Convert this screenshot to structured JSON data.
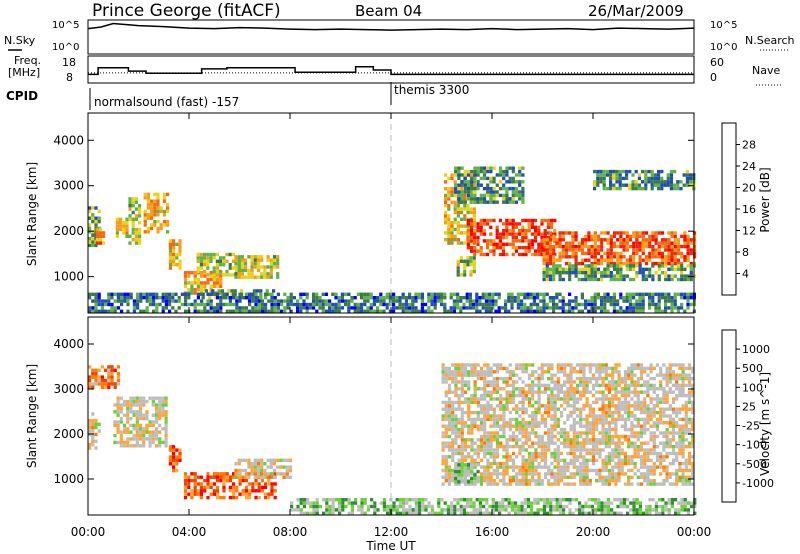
{
  "header": {
    "station": "Prince George (fitACF)",
    "beam": "Beam 04",
    "date": "26/Mar/2009"
  },
  "nsky_panel": {
    "left_label": "N.Sky",
    "right_label": "N.Search",
    "left_ticks": [
      "10^5",
      "10^0"
    ],
    "right_ticks": [
      "10^5",
      "10^0"
    ]
  },
  "freq_panel": {
    "left_label_1": "Freq.",
    "left_label_2": "[MHz]",
    "right_label": "Nave",
    "left_ticks": [
      "18",
      "8"
    ],
    "right_ticks": [
      "60",
      "0"
    ]
  },
  "cpid": {
    "label": "CPID",
    "modes": [
      "normalsound (fast) -157",
      "themis 3300"
    ]
  },
  "time_axis": {
    "label": "Time UT",
    "ticks": [
      "00:00",
      "04:00",
      "08:00",
      "12:00",
      "16:00",
      "20:00",
      "00:00"
    ]
  },
  "colors": {
    "power_scale": [
      "#0000ff",
      "#1f4fb4",
      "#3a7a46",
      "#5fb24a",
      "#e6d31b",
      "#f59e1c",
      "#f26b14",
      "#e82a0d",
      "#ff0000"
    ],
    "velocity_scale": [
      "#ff0000",
      "#ee4400",
      "#ff7a00",
      "#ffa43a",
      "#bdbdbd",
      "#bdbdbd",
      "#6ad13a",
      "#2f8f2f",
      "#1f58b8",
      "#1838c8"
    ]
  },
  "chart_data": [
    {
      "type": "heatmap",
      "title": "Power",
      "xlabel": "Time UT",
      "ylabel": "Slant Range [km]",
      "colorbar_label": "Power [dB]",
      "colorbar_ticks": [
        "28",
        "24",
        "20",
        "16",
        "12",
        "8",
        "4"
      ],
      "y_ticks": [
        "4000",
        "3000",
        "2000",
        "1000"
      ],
      "xlim": [
        0,
        24
      ],
      "ylim": [
        200,
        4600
      ],
      "patches": [
        {
          "t0": 0.0,
          "t1": 0.5,
          "r0": 1650,
          "r1": 2500,
          "level": 0.35
        },
        {
          "t0": 0.3,
          "t1": 0.6,
          "r0": 1700,
          "r1": 2000,
          "level": 0.65
        },
        {
          "t0": 1.1,
          "t1": 1.5,
          "r0": 1850,
          "r1": 2250,
          "level": 0.55
        },
        {
          "t0": 1.6,
          "t1": 2.1,
          "r0": 1700,
          "r1": 2700,
          "level": 0.45
        },
        {
          "t0": 2.2,
          "t1": 3.1,
          "r0": 1950,
          "r1": 2800,
          "level": 0.6
        },
        {
          "t0": 3.2,
          "t1": 3.7,
          "r0": 1150,
          "r1": 1750,
          "level": 0.55
        },
        {
          "t0": 3.8,
          "t1": 5.3,
          "r0": 600,
          "r1": 1050,
          "level": 0.6
        },
        {
          "t0": 4.3,
          "t1": 6.0,
          "r0": 1000,
          "r1": 1500,
          "level": 0.45
        },
        {
          "t0": 4.5,
          "t1": 7.3,
          "r0": 500,
          "r1": 700,
          "level": 0.35
        },
        {
          "t0": 5.8,
          "t1": 7.5,
          "r0": 950,
          "r1": 1400,
          "level": 0.5
        },
        {
          "t0": 14.1,
          "t1": 15.3,
          "r0": 1700,
          "r1": 3200,
          "level": 0.55
        },
        {
          "t0": 15.0,
          "t1": 18.5,
          "r0": 1450,
          "r1": 2200,
          "level": 0.8
        },
        {
          "t0": 18.0,
          "t1": 24.0,
          "r0": 1250,
          "r1": 1950,
          "level": 0.75
        },
        {
          "t0": 18.0,
          "t1": 24.0,
          "r0": 900,
          "r1": 1250,
          "level": 0.35
        },
        {
          "t0": 14.5,
          "t1": 17.2,
          "r0": 2600,
          "r1": 3400,
          "level": 0.3
        },
        {
          "t0": 20.0,
          "t1": 24.0,
          "r0": 2900,
          "r1": 3300,
          "level": 0.3
        },
        {
          "t0": 14.6,
          "t1": 15.3,
          "r0": 1000,
          "r1": 1400,
          "level": 0.4
        },
        {
          "t0": 0.0,
          "t1": 24.0,
          "r0": 200,
          "r1": 600,
          "level": 0.25
        }
      ]
    },
    {
      "type": "heatmap",
      "title": "Velocity",
      "xlabel": "Time UT",
      "ylabel": "Slant Range [km]",
      "colorbar_label": "Velocity [m s^-1]",
      "colorbar_ticks": [
        "1000",
        "500",
        "100",
        "25",
        "-25",
        "-100",
        "-500",
        "-1000"
      ],
      "y_ticks": [
        "4000",
        "3000",
        "2000",
        "1000"
      ],
      "xlim": [
        0,
        24
      ],
      "ylim": [
        200,
        4600
      ],
      "patches": [
        {
          "t0": 0.0,
          "t1": 0.5,
          "r0": 1650,
          "r1": 2450,
          "level": 0.45
        },
        {
          "t0": 1.0,
          "t1": 3.1,
          "r0": 1700,
          "r1": 2800,
          "level": 0.48
        },
        {
          "t0": 3.2,
          "t1": 3.7,
          "r0": 1150,
          "r1": 1750,
          "level": 0.18
        },
        {
          "t0": 3.8,
          "t1": 7.4,
          "r0": 550,
          "r1": 1150,
          "level": 0.22
        },
        {
          "t0": 5.8,
          "t1": 8.0,
          "r0": 1000,
          "r1": 1450,
          "level": 0.45
        },
        {
          "t0": 0.0,
          "t1": 1.2,
          "r0": 3000,
          "r1": 3500,
          "level": 0.25
        },
        {
          "t0": 14.0,
          "t1": 24.0,
          "r0": 850,
          "r1": 3500,
          "level": 0.46
        },
        {
          "t0": 14.5,
          "t1": 15.5,
          "r0": 900,
          "r1": 1350,
          "level": 0.62
        },
        {
          "t0": 8.0,
          "t1": 24.0,
          "r0": 200,
          "r1": 550,
          "level": 0.62
        }
      ]
    }
  ],
  "nsky_series": [
    {
      "name": "N.Sky",
      "x": [
        0,
        0.5,
        1,
        2,
        3,
        4,
        5,
        6,
        7,
        8,
        9,
        10,
        11,
        12,
        13,
        14,
        15,
        16,
        17,
        18,
        19,
        20,
        21,
        22,
        23,
        24
      ],
      "y": [
        4.2,
        4.5,
        5.2,
        4.8,
        4.6,
        4.3,
        4.2,
        4.4,
        4.3,
        4.1,
        4.0,
        4.1,
        4.0,
        3.9,
        4.0,
        4.1,
        4.0,
        4.2,
        4.0,
        4.1,
        4.2,
        4.0,
        4.3,
        4.2,
        4.1,
        4.3
      ]
    }
  ],
  "freq_series": [
    {
      "name": "Freq",
      "x": [
        0,
        0.4,
        0.4,
        1.6,
        1.6,
        2.3,
        2.3,
        4.5,
        4.5,
        5.5,
        5.5,
        8.2,
        8.2,
        10.6,
        10.6,
        11.3,
        11.3,
        12.0,
        12.0,
        24
      ],
      "y": [
        11.0,
        11.0,
        14.0,
        14.0,
        12.5,
        12.5,
        11.5,
        11.5,
        13.5,
        13.5,
        14.0,
        14.0,
        12.0,
        12.0,
        14.5,
        14.5,
        13.0,
        13.0,
        11.0,
        11.0
      ]
    },
    {
      "name": "Nave",
      "x": [
        0,
        24
      ],
      "y": [
        22,
        22
      ]
    }
  ]
}
